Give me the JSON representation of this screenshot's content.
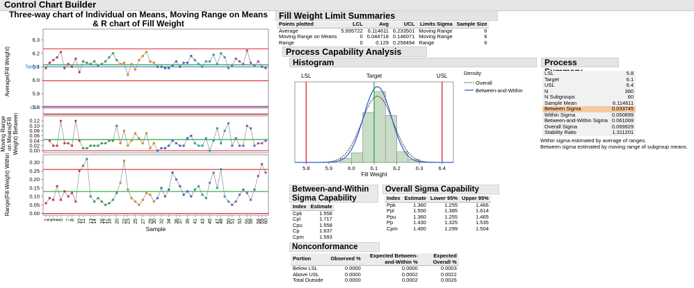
{
  "window": {
    "title": "Control Chart Builder"
  },
  "control_chart": {
    "title_line1": "Three-way chart of Individual on Means, Moving Range on Means",
    "title_line2": "& R chart of Fill Weight",
    "panel1_ylabel": "Average(Fill Weight)",
    "panel2_ylabel_l1": "Moving Range",
    "panel2_ylabel_l2": "on Means(Fill",
    "panel2_ylabel_l3": "Weight) Between",
    "panel3_ylabel": "Range(Fill Weight) Within",
    "xlabel": "Sample",
    "target_label": "Target",
    "lsl_label": "LSL",
    "colors": {
      "ucl": "#e0212e",
      "center": "#22a83a",
      "target": "#3b6fd6",
      "lsl": "#2b52c9",
      "point_line": "#8a8a8a"
    }
  },
  "chart_data": [
    {
      "type": "line",
      "title": "Three-way chart of Individual on Means, Moving Range on Means & R chart of Fill Weight",
      "panel": "Average(Fill Weight)",
      "xlabel": "Sample",
      "ylim": [
        5.75,
        6.38
      ],
      "yticks": [
        5.8,
        5.9,
        6.0,
        6.1,
        6.2,
        6.3
      ],
      "ucl": 6.233501,
      "center": 6.114611,
      "lcl": 5.995722,
      "target": 6.1,
      "lsl": 5.8,
      "x": [
        1,
        2,
        3,
        4,
        5,
        6,
        7,
        8,
        9,
        10,
        11,
        12,
        13,
        14,
        15,
        16,
        17,
        18,
        19,
        20,
        21,
        22,
        23,
        24,
        25,
        26,
        27,
        28,
        29,
        30,
        31,
        32,
        33,
        34,
        35,
        36,
        37,
        38,
        39,
        40,
        41,
        42,
        43,
        44,
        45,
        46,
        47,
        48,
        49,
        50,
        51,
        52,
        53,
        54,
        55,
        56,
        57,
        58,
        59,
        60
      ],
      "values": [
        6.09,
        6.13,
        6.15,
        6.17,
        6.21,
        6.09,
        6.12,
        6.1,
        6.16,
        6.06,
        6.14,
        6.13,
        6.12,
        6.14,
        6.11,
        6.12,
        6.14,
        6.17,
        6.2,
        6.15,
        6.12,
        6.13,
        6.04,
        6.12,
        6.08,
        6.15,
        6.18,
        6.21,
        6.14,
        6.13,
        6.1,
        6.1,
        6.09,
        6.09,
        6.11,
        6.14,
        6.1,
        6.13,
        6.13,
        6.18,
        6.15,
        6.12,
        6.1,
        6.14,
        6.14,
        6.19,
        6.12,
        6.2,
        6.17,
        6.09,
        6.11,
        6.16,
        6.14,
        6.12,
        6.22,
        6.13,
        6.11,
        6.14,
        6.1,
        6.09
      ],
      "xtick_labels": [
        "1",
        "2",
        "3",
        "4",
        "5",
        "7",
        "8",
        "10",
        "11",
        "13",
        "14",
        "16",
        "17",
        "18",
        "20",
        "22",
        "23",
        "25",
        "27",
        "29",
        "30",
        "32",
        "34",
        "36",
        "37",
        "39",
        "41",
        "43",
        "45",
        "47",
        "48",
        "50",
        "51",
        "53",
        "55",
        "56",
        "58",
        "59",
        "60"
      ]
    },
    {
      "type": "line",
      "panel": "Moving Range on Means(Fill Weight) Between",
      "ylim": [
        -0.008,
        0.14
      ],
      "yticks": [
        0.0,
        0.02,
        0.04,
        0.06,
        0.08,
        0.1,
        0.12
      ],
      "ucl": 0.146071,
      "center": 0.044718,
      "lcl": 0,
      "values": [
        null,
        0.04,
        0.02,
        0.02,
        0.12,
        0.03,
        0.03,
        0.02,
        0.12,
        0.04,
        0.01,
        0.01,
        0.02,
        0.02,
        0.02,
        0.03,
        0.03,
        0.04,
        0.04,
        0.1,
        0.03,
        0.08,
        0.02,
        0.04,
        0.07,
        0.05,
        0.03,
        0.07,
        0.01,
        0.03,
        0.0,
        0.01,
        0.01,
        0.02,
        0.04,
        0.03,
        0.02,
        0.02,
        0.05,
        0.06,
        0.03,
        0.02,
        0.02,
        0.05,
        0.0,
        0.04,
        0.09,
        0.03,
        0.08,
        0.11,
        0.02,
        0.05,
        0.02,
        0.02,
        0.1,
        0.09,
        0.02,
        0.03,
        0.03,
        0.04
      ]
    },
    {
      "type": "line",
      "panel": "Range(Fill Weight) Within",
      "ylim": [
        -0.01,
        0.345
      ],
      "yticks": [
        0.0,
        0.05,
        0.1,
        0.15,
        0.2,
        0.25,
        0.3
      ],
      "ucl": 0.258494,
      "center": 0.129,
      "lcl": 0,
      "values": [
        0.06,
        0.09,
        0.08,
        0.16,
        0.08,
        0.13,
        0.1,
        0.12,
        0.07,
        0.25,
        0.28,
        0.32,
        0.1,
        0.07,
        0.09,
        0.07,
        0.05,
        0.06,
        0.08,
        0.12,
        0.18,
        0.31,
        0.14,
        0.09,
        0.07,
        0.05,
        0.08,
        0.12,
        0.11,
        0.07,
        0.09,
        0.15,
        0.1,
        0.14,
        0.24,
        0.2,
        0.16,
        0.11,
        0.13,
        0.1,
        0.14,
        0.16,
        0.11,
        0.09,
        0.18,
        0.24,
        0.15,
        0.26,
        0.1,
        0.07,
        0.05,
        0.07,
        0.11,
        0.14,
        0.12,
        0.08,
        0.14,
        0.22,
        0.29,
        0.24
      ]
    },
    {
      "type": "bar",
      "title": "Histogram",
      "xlabel": "Fill Weight",
      "xlim": [
        5.75,
        6.45
      ],
      "xticks": [
        5.8,
        5.9,
        6.0,
        6.1,
        6.2,
        6.3,
        6.4
      ],
      "bin_edges": [
        5.95,
        6.0,
        6.05,
        6.1,
        6.15,
        6.2,
        6.25,
        6.3
      ],
      "values": [
        0.4,
        1.0,
        5.2,
        7.4,
        4.9,
        1.1,
        0.3
      ],
      "lsl": 5.8,
      "target": 6.1,
      "usl": 6.4,
      "legend_title": "Density",
      "series": [
        {
          "name": "Overall"
        },
        {
          "name": "Between-and-Within"
        }
      ]
    }
  ],
  "limit_summary": {
    "title": "Fill Weight Limit Summaries",
    "columns": [
      "Points plotted",
      "LCL",
      "Avg",
      "UCL",
      "Limits Sigma",
      "Sample Size"
    ],
    "rows": [
      [
        "Average",
        "5.995722",
        "6.114611",
        "6.233501",
        "Moving Range",
        "6"
      ],
      [
        "Moving Range on Means",
        "0",
        "0.044718",
        "0.146071",
        "Moving Range",
        "6"
      ],
      [
        "Range",
        "0",
        "0.129",
        "0.258494",
        "Range",
        "6"
      ]
    ]
  },
  "capability": {
    "title": "Process Capability Analysis",
    "histogram_title": "Histogram",
    "hist_labels": {
      "lsl": "LSL",
      "target": "Target",
      "usl": "USL",
      "xlabel": "Fill Weight"
    },
    "legend": {
      "title": "Density",
      "overall": "Overall",
      "bw": "Between-and-Within"
    },
    "summary_title": "Process Summary",
    "summary_rows": [
      [
        "LSL",
        "5.8"
      ],
      [
        "Target",
        "6.1"
      ],
      [
        "USL",
        "6.4"
      ],
      [
        "N",
        "360"
      ],
      [
        "N Subgroups",
        "60"
      ],
      [
        "Sample Mean",
        "6.114611"
      ],
      [
        "Between Sigma",
        "0.033745"
      ],
      [
        "Within Sigma",
        "0.050899"
      ],
      [
        "Between-and-Within Sigma",
        "0.061069"
      ],
      [
        "Overall Sigma",
        "0.069929"
      ],
      [
        "Stability Ratio",
        "1.311201"
      ]
    ],
    "summary_note1": "Within sigma estimated by average of ranges.",
    "summary_note2": "Between sigma estimated by moving range of subgroup means.",
    "bw_title1": "Between-and-Within",
    "bw_title2": "Sigma Capability",
    "bw_columns": [
      "Index",
      "Estimate"
    ],
    "bw_rows": [
      [
        "Cpk",
        "1.558"
      ],
      [
        "Cpl",
        "1.717"
      ],
      [
        "Cpu",
        "1.558"
      ],
      [
        "Cp",
        "1.637"
      ],
      [
        "Cpm",
        "1.593"
      ]
    ],
    "overall_title": "Overall Sigma Capability",
    "overall_columns": [
      "Index",
      "Estimate",
      "Lower 95%",
      "Upper 95%"
    ],
    "overall_rows": [
      [
        "Ppk",
        "1.360",
        "1.255",
        "1.466"
      ],
      [
        "Ppl",
        "1.500",
        "1.385",
        "1.614"
      ],
      [
        "Ppu",
        "1.360",
        "1.255",
        "1.465"
      ],
      [
        "Pp",
        "1.430",
        "1.325",
        "1.535"
      ],
      [
        "Cpm",
        "1.400",
        "1.299",
        "1.504"
      ]
    ],
    "nonconf_title": "Nonconformance",
    "nonconf_columns": [
      "Portion",
      "Observed %",
      "Expected Between-and-Within %",
      "Expected Overall %"
    ],
    "nonconf_rows": [
      [
        "Below LSL",
        "0.0000",
        "0.0000",
        "0.0003"
      ],
      [
        "Above USL",
        "0.0000",
        "0.0002",
        "0.0022"
      ],
      [
        "Total Outside",
        "0.0000",
        "0.0002",
        "0.0026"
      ]
    ]
  }
}
